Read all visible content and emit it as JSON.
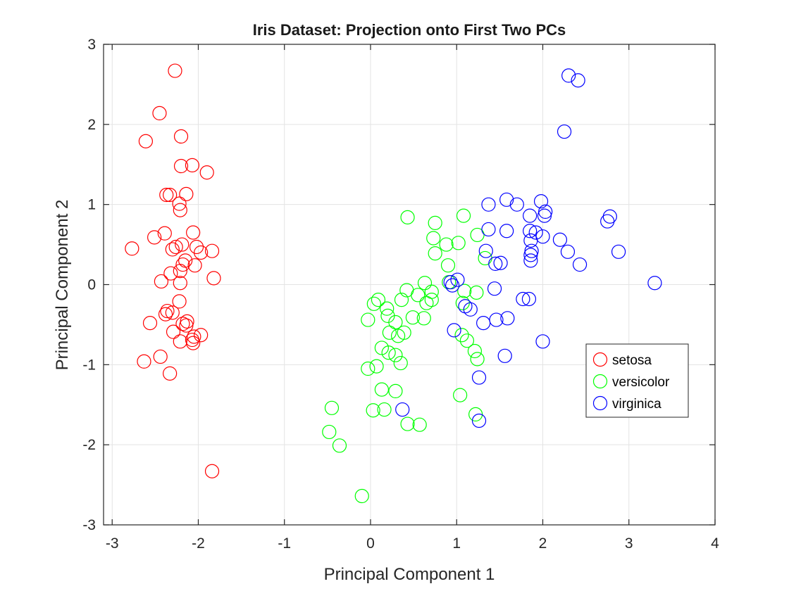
{
  "chart_data": {
    "type": "scatter",
    "title": "Iris Dataset: Projection onto First Two PCs",
    "xlabel": "Principal Component 1",
    "ylabel": "Principal Component 2",
    "xlim": [
      -3.1,
      4
    ],
    "ylim": [
      -3,
      3
    ],
    "xticks": [
      "-3",
      "-2",
      "-1",
      "0",
      "1",
      "2",
      "3",
      "4"
    ],
    "yticks": [
      "-3",
      "-2",
      "-1",
      "0",
      "1",
      "2",
      "3"
    ],
    "grid": true,
    "legend_position": "right",
    "series": [
      {
        "name": "setosa",
        "color": "#ff0000",
        "marker": "circle-open",
        "points": [
          [
            -2.27,
            2.67
          ],
          [
            -2.45,
            2.14
          ],
          [
            -2.61,
            1.79
          ],
          [
            -2.2,
            1.85
          ],
          [
            -2.2,
            1.48
          ],
          [
            -2.07,
            1.49
          ],
          [
            -1.9,
            1.4
          ],
          [
            -2.37,
            1.12
          ],
          [
            -2.33,
            1.12
          ],
          [
            -2.14,
            1.13
          ],
          [
            -2.22,
            1.01
          ],
          [
            -2.21,
            0.93
          ],
          [
            -2.39,
            0.64
          ],
          [
            -2.51,
            0.59
          ],
          [
            -2.06,
            0.65
          ],
          [
            -2.77,
            0.45
          ],
          [
            -2.3,
            0.44
          ],
          [
            -2.26,
            0.47
          ],
          [
            -2.19,
            0.5
          ],
          [
            -2.02,
            0.47
          ],
          [
            -1.97,
            0.4
          ],
          [
            -1.84,
            0.42
          ],
          [
            -2.15,
            0.3
          ],
          [
            -2.18,
            0.25
          ],
          [
            -2.04,
            0.24
          ],
          [
            -2.21,
            0.17
          ],
          [
            -2.32,
            0.14
          ],
          [
            -2.43,
            0.04
          ],
          [
            -2.21,
            0.02
          ],
          [
            -1.82,
            0.08
          ],
          [
            -2.22,
            -0.21
          ],
          [
            -2.36,
            -0.33
          ],
          [
            -2.3,
            -0.35
          ],
          [
            -2.38,
            -0.37
          ],
          [
            -2.13,
            -0.46
          ],
          [
            -2.18,
            -0.49
          ],
          [
            -2.14,
            -0.51
          ],
          [
            -2.56,
            -0.48
          ],
          [
            -2.29,
            -0.59
          ],
          [
            -2.05,
            -0.65
          ],
          [
            -1.97,
            -0.63
          ],
          [
            -2.07,
            -0.69
          ],
          [
            -2.21,
            -0.71
          ],
          [
            -2.06,
            -0.73
          ],
          [
            -2.44,
            -0.9
          ],
          [
            -2.63,
            -0.96
          ],
          [
            -2.33,
            -1.11
          ],
          [
            -1.84,
            -2.33
          ]
        ]
      },
      {
        "name": "versicolor",
        "color": "#00ff00",
        "marker": "circle-open",
        "points": [
          [
            0.43,
            0.84
          ],
          [
            1.08,
            0.86
          ],
          [
            0.75,
            0.77
          ],
          [
            1.24,
            0.62
          ],
          [
            0.73,
            0.58
          ],
          [
            0.88,
            0.5
          ],
          [
            1.02,
            0.52
          ],
          [
            0.75,
            0.39
          ],
          [
            0.9,
            0.24
          ],
          [
            1.33,
            0.33
          ],
          [
            0.42,
            -0.07
          ],
          [
            0.63,
            0.02
          ],
          [
            0.71,
            -0.09
          ],
          [
            0.55,
            -0.13
          ],
          [
            0.65,
            -0.23
          ],
          [
            0.71,
            -0.19
          ],
          [
            0.91,
            0.03
          ],
          [
            1.07,
            -0.23
          ],
          [
            1.23,
            -0.1
          ],
          [
            0.09,
            -0.19
          ],
          [
            0.04,
            -0.24
          ],
          [
            0.19,
            -0.3
          ],
          [
            0.2,
            -0.39
          ],
          [
            0.36,
            -0.19
          ],
          [
            0.49,
            -0.41
          ],
          [
            0.62,
            -0.42
          ],
          [
            0.29,
            -0.47
          ],
          [
            0.22,
            -0.6
          ],
          [
            0.32,
            -0.64
          ],
          [
            0.39,
            -0.6
          ],
          [
            -0.03,
            -0.44
          ],
          [
            0.13,
            -0.79
          ],
          [
            0.21,
            -0.85
          ],
          [
            0.29,
            -0.88
          ],
          [
            0.35,
            -0.98
          ],
          [
            0.07,
            -1.02
          ],
          [
            -0.03,
            -1.05
          ],
          [
            0.13,
            -1.31
          ],
          [
            0.29,
            -1.33
          ],
          [
            0.16,
            -1.56
          ],
          [
            0.03,
            -1.57
          ],
          [
            0.43,
            -1.74
          ],
          [
            0.57,
            -1.75
          ],
          [
            1.06,
            -0.63
          ],
          [
            1.12,
            -0.7
          ],
          [
            1.21,
            -0.83
          ],
          [
            1.24,
            -0.93
          ],
          [
            1.04,
            -1.38
          ],
          [
            1.22,
            -1.62
          ],
          [
            -0.45,
            -1.54
          ],
          [
            -0.48,
            -1.84
          ],
          [
            -0.36,
            -2.01
          ],
          [
            -0.1,
            -2.64
          ],
          [
            1.09,
            -0.08
          ]
        ]
      },
      {
        "name": "virginica",
        "color": "#0000ff",
        "marker": "circle-open",
        "points": [
          [
            2.3,
            2.61
          ],
          [
            2.41,
            2.55
          ],
          [
            2.25,
            1.91
          ],
          [
            1.37,
            1.0
          ],
          [
            1.58,
            1.06
          ],
          [
            1.7,
            1.0
          ],
          [
            1.98,
            1.04
          ],
          [
            2.03,
            0.91
          ],
          [
            2.02,
            0.86
          ],
          [
            1.85,
            0.86
          ],
          [
            1.37,
            0.69
          ],
          [
            1.58,
            0.67
          ],
          [
            1.85,
            0.67
          ],
          [
            1.92,
            0.65
          ],
          [
            2.0,
            0.6
          ],
          [
            2.78,
            0.85
          ],
          [
            2.75,
            0.79
          ],
          [
            1.86,
            0.55
          ],
          [
            2.2,
            0.56
          ],
          [
            2.29,
            0.41
          ],
          [
            2.88,
            0.41
          ],
          [
            1.34,
            0.42
          ],
          [
            1.87,
            0.42
          ],
          [
            1.86,
            0.37
          ],
          [
            1.86,
            0.3
          ],
          [
            1.45,
            0.26
          ],
          [
            1.51,
            0.27
          ],
          [
            2.43,
            0.25
          ],
          [
            0.93,
            0.03
          ],
          [
            1.01,
            0.06
          ],
          [
            0.95,
            -0.01
          ],
          [
            3.3,
            0.02
          ],
          [
            1.44,
            -0.05
          ],
          [
            1.1,
            -0.27
          ],
          [
            1.16,
            -0.31
          ],
          [
            1.77,
            -0.18
          ],
          [
            1.84,
            -0.18
          ],
          [
            1.31,
            -0.48
          ],
          [
            1.46,
            -0.44
          ],
          [
            1.59,
            -0.42
          ],
          [
            0.97,
            -0.57
          ],
          [
            2.0,
            -0.71
          ],
          [
            1.56,
            -0.89
          ],
          [
            1.26,
            -1.16
          ],
          [
            0.37,
            -1.56
          ],
          [
            1.26,
            -1.7
          ]
        ]
      }
    ]
  }
}
